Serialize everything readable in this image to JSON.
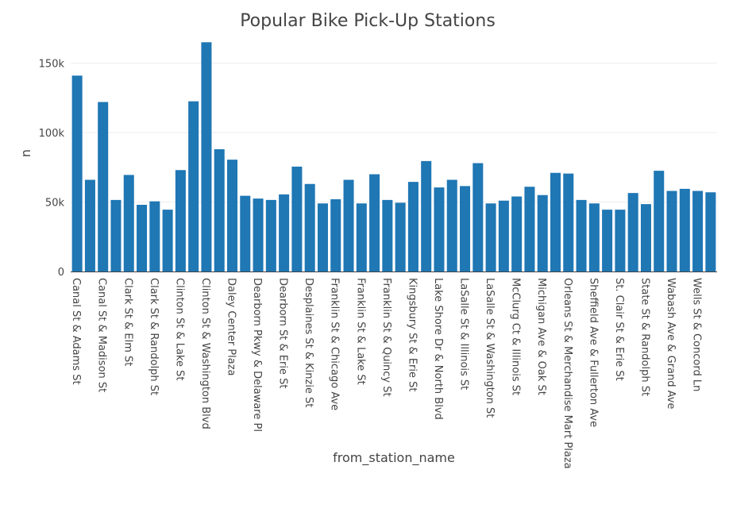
{
  "chart_data": {
    "type": "bar",
    "title": "Popular Bike Pick-Up Stations",
    "xlabel": "from_station_name",
    "ylabel": "n",
    "ylim": [
      0,
      168000
    ],
    "yticks": [
      0,
      50000,
      100000,
      150000
    ],
    "ytick_labels": [
      "0",
      "50k",
      "100k",
      "150k"
    ],
    "grid": true,
    "bar_color": "#1f77b4",
    "categories": [
      "Canal St & Adams St",
      "",
      "Canal St & Madison St",
      "",
      "Clark St & Elm St",
      "",
      "Clark St & Randolph St",
      "",
      "Clinton St & Lake St",
      "",
      "Clinton St & Washington Blvd",
      "",
      "Daley Center Plaza",
      "",
      "Dearborn Pkwy & Delaware Pl",
      "",
      "Dearborn St & Erie St",
      "",
      "Desplaines St & Kinzie St",
      "",
      "Franklin St & Chicago Ave",
      "",
      "Franklin St & Lake St",
      "",
      "Franklin St & Quincy St",
      "",
      "Kingsbury St & Erie St",
      "",
      "Lake Shore Dr & North Blvd",
      "",
      "LaSalle St & Illinois St",
      "",
      "LaSalle St & Washington St",
      "",
      "McClurg Ct & Illinois St",
      "",
      "Michigan Ave & Oak St",
      "",
      "Orleans St & Merchandise Mart Plaza",
      "",
      "Sheffield Ave & Fullerton Ave",
      "",
      "St. Clair St & Erie St",
      "",
      "State St & Randolph St",
      "",
      "Wabash Ave & Grand Ave",
      "",
      "Wells St & Concord Ln",
      ""
    ],
    "values": [
      141000,
      66000,
      122000,
      51500,
      69500,
      48000,
      50500,
      44500,
      73000,
      122500,
      165000,
      88000,
      80500,
      54500,
      52500,
      51500,
      55500,
      75500,
      63000,
      49000,
      52000,
      66000,
      49000,
      70000,
      51500,
      49500,
      64500,
      79500,
      60500,
      66000,
      61500,
      78000,
      49000,
      51000,
      54000,
      61000,
      55000,
      71000,
      70500,
      51500,
      49000,
      44500,
      44500,
      56500,
      48500,
      72500,
      58000,
      59500,
      58000,
      57000
    ]
  }
}
